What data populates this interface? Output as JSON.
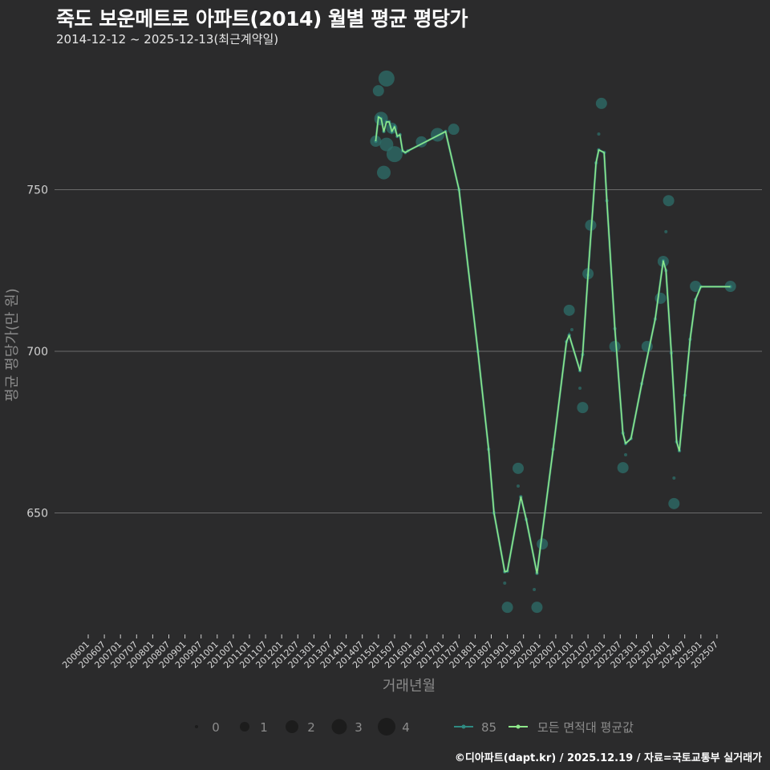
{
  "title": "죽도 보운메트로 아파트(2014) 월별 평균 평당가",
  "subtitle": "2014-12-12 ~ 2025-12-13(최근계약일)",
  "footer": "©디아파트(dapt.kr) / 2025.12.19 / 자료=국토교통부 실거래가",
  "colors": {
    "background": "#2b2b2c",
    "grid": "#6b6b6b",
    "series_85": "#2f8a82",
    "average": "#8ee88a",
    "bubble": "#2e6f6a"
  },
  "chart_data": {
    "type": "line",
    "xlabel": "거래년월",
    "ylabel": "평균 평당가(만 원)",
    "ylim": [
      612,
      800
    ],
    "yticks": [
      650,
      700,
      750
    ],
    "xticks": [
      "200601",
      "200607",
      "200701",
      "200707",
      "200801",
      "200807",
      "200901",
      "200907",
      "201001",
      "201007",
      "201101",
      "201107",
      "201201",
      "201207",
      "201301",
      "201307",
      "201401",
      "201407",
      "201501",
      "201507",
      "201601",
      "201607",
      "201701",
      "201707",
      "201801",
      "201807",
      "201901",
      "201907",
      "202001",
      "202007",
      "202101",
      "202107",
      "202201",
      "202207",
      "202301",
      "202307",
      "202401",
      "202407",
      "202501",
      "202507"
    ],
    "grid": true,
    "legend": {
      "size_title": "",
      "sizes": [
        "0",
        "1",
        "2",
        "3",
        "4"
      ],
      "series": [
        "85",
        "모든 면적대 평균값"
      ],
      "placement": "bottom"
    },
    "series": [
      {
        "name": "모든 면적대 평균값",
        "points": [
          [
            "201412",
            765
          ],
          [
            "201501",
            772.5
          ],
          [
            "201502",
            772
          ],
          [
            "201503",
            768
          ],
          [
            "201504",
            771
          ],
          [
            "201505",
            771
          ],
          [
            "201506",
            768
          ],
          [
            "201507",
            769.5
          ],
          [
            "201508",
            766.5
          ],
          [
            "201509",
            767
          ],
          [
            "201510",
            762
          ],
          [
            "201511",
            761.5
          ],
          [
            "201512",
            762
          ],
          [
            "201702",
            768
          ],
          [
            "201707",
            750
          ],
          [
            "201802",
            700
          ],
          [
            "201806",
            669.7
          ],
          [
            "201808",
            650
          ],
          [
            "201812",
            631.8
          ],
          [
            "201901",
            632
          ],
          [
            "201906",
            655
          ],
          [
            "201908",
            648
          ],
          [
            "201912",
            631.3
          ],
          [
            "202006",
            669.7
          ],
          [
            "202011",
            703
          ],
          [
            "202012",
            705
          ],
          [
            "202104",
            694
          ],
          [
            "202105",
            699
          ],
          [
            "202107",
            723.6
          ],
          [
            "202110",
            758.3
          ],
          [
            "202111",
            762.3
          ],
          [
            "202201",
            761.5
          ],
          [
            "202202",
            746.6
          ],
          [
            "202205",
            707
          ],
          [
            "202208",
            674.7
          ],
          [
            "202209",
            671.5
          ],
          [
            "202211",
            673
          ],
          [
            "202303",
            690
          ],
          [
            "202308",
            710
          ],
          [
            "202311",
            728
          ],
          [
            "202312",
            725
          ],
          [
            "202402",
            699.5
          ],
          [
            "202404",
            672
          ],
          [
            "202405",
            669.2
          ],
          [
            "202407",
            686.4
          ],
          [
            "202409",
            703.7
          ],
          [
            "202411",
            716
          ],
          [
            "202501",
            720
          ],
          [
            "202512",
            720
          ]
        ]
      },
      {
        "name": "85",
        "bubbles": [
          [
            "201504",
            784.4,
            4
          ],
          [
            "201501",
            780.6,
            2
          ],
          [
            "201502",
            772,
            3
          ],
          [
            "201506",
            769,
            2
          ],
          [
            "201412",
            765,
            2
          ],
          [
            "201504",
            764,
            3
          ],
          [
            "201507",
            761,
            4
          ],
          [
            "201503",
            755.3,
            3
          ],
          [
            "201605",
            764.8,
            2
          ],
          [
            "201611",
            767,
            3
          ],
          [
            "201705",
            768.7,
            2
          ],
          [
            "201905",
            663.8,
            2
          ],
          [
            "201905",
            658.3,
            0
          ],
          [
            "201901",
            620.8,
            2
          ],
          [
            "201912",
            620.8,
            2
          ],
          [
            "201812",
            628.3,
            0
          ],
          [
            "201911",
            626.3,
            0
          ],
          [
            "202002",
            640.4,
            2
          ],
          [
            "202112",
            776.7,
            2
          ],
          [
            "202111",
            767.2,
            0
          ],
          [
            "202108",
            739,
            2
          ],
          [
            "202401",
            746.6,
            2
          ],
          [
            "202312",
            737,
            0
          ],
          [
            "202107",
            724,
            2
          ],
          [
            "202311",
            727.8,
            2
          ],
          [
            "202012",
            712.7,
            2
          ],
          [
            "202310",
            716.4,
            2
          ],
          [
            "202411",
            720.1,
            2
          ],
          [
            "202512",
            720.1,
            2
          ],
          [
            "202205",
            701.5,
            2
          ],
          [
            "202305",
            701.5,
            2
          ],
          [
            "202105",
            682.6,
            2
          ],
          [
            "202104",
            688.6,
            0
          ],
          [
            "202101",
            706.7,
            0
          ],
          [
            "202208",
            664,
            2
          ],
          [
            "202209",
            668,
            0
          ],
          [
            "202403",
            660.8,
            0
          ],
          [
            "202403",
            652.9,
            2
          ]
        ]
      }
    ]
  }
}
